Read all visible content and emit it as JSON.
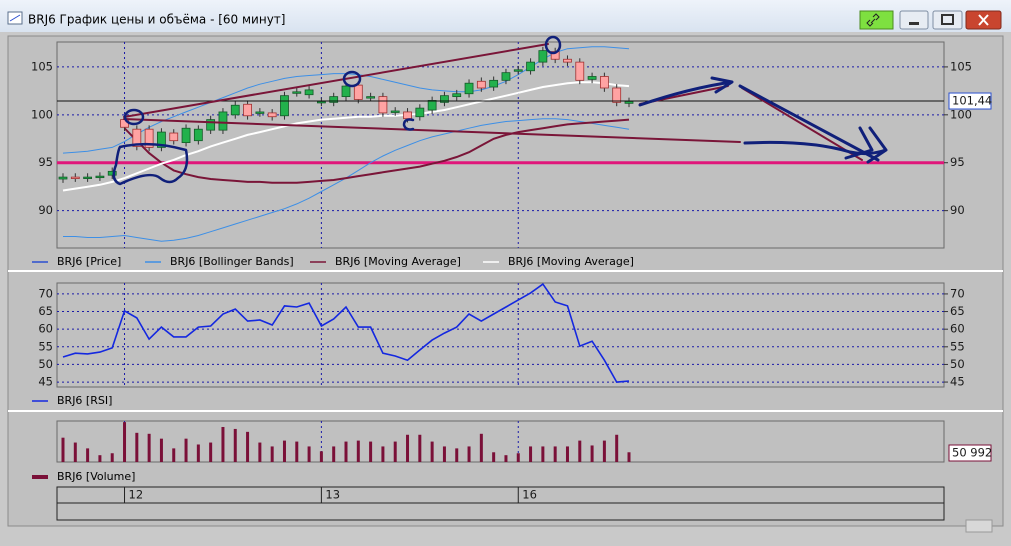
{
  "window": {
    "title": "BRJ6 График цены и объёма - [60 минут]"
  },
  "chart_data": [
    {
      "type": "candlestick",
      "ylim": [
        86.1,
        107.6
      ],
      "yticks": [
        90,
        95,
        100,
        105
      ],
      "grid": true,
      "level": 95,
      "level_color": "#e0167a",
      "last_price": {
        "value": 101.44,
        "label": "101,44"
      },
      "series": [
        {
          "name": "BRJ6 [Price]",
          "color": "#2a4fd0",
          "up_color": "#22b14c",
          "down_color": "#ffa3a3",
          "open": [
            93.3,
            93.5,
            93.4,
            93.5,
            93.7,
            99.5,
            98.5,
            98.5,
            96.6,
            98.1,
            97.1,
            97.3,
            98.4,
            98.4,
            100.0,
            101.1,
            100.2,
            100.2,
            99.9,
            102.3,
            102.1,
            101.3,
            101.3,
            101.9,
            103.1,
            101.8,
            101.9,
            100.3,
            100.3,
            99.8,
            100.5,
            101.3,
            101.9,
            102.2,
            103.5,
            102.9,
            103.6,
            104.6,
            104.6,
            105.5,
            106.6,
            105.8,
            105.5,
            103.7,
            104.0,
            102.8,
            101.2
          ],
          "high": [
            93.9,
            93.9,
            93.9,
            94.0,
            94.5,
            99.9,
            98.9,
            98.9,
            98.6,
            98.5,
            99.0,
            98.9,
            99.9,
            100.7,
            101.4,
            101.5,
            100.7,
            100.6,
            102.4,
            102.8,
            103.0,
            101.8,
            102.3,
            103.4,
            103.5,
            102.3,
            102.3,
            100.8,
            100.7,
            101.1,
            101.9,
            102.4,
            102.6,
            103.7,
            103.9,
            104.0,
            104.8,
            105.1,
            105.9,
            107.1,
            107.0,
            106.2,
            105.9,
            104.4,
            104.4,
            103.2,
            101.8
          ],
          "low": [
            92.9,
            93.0,
            93.0,
            93.1,
            93.3,
            98.3,
            96.3,
            96.2,
            96.2,
            96.9,
            96.7,
            96.9,
            98.0,
            98.0,
            99.6,
            99.5,
            99.8,
            99.4,
            99.5,
            101.9,
            101.7,
            100.9,
            100.9,
            101.5,
            101.2,
            101.4,
            99.8,
            99.9,
            99.2,
            99.4,
            100.1,
            100.9,
            101.5,
            101.8,
            102.4,
            102.5,
            103.2,
            104.2,
            104.2,
            105.1,
            105.4,
            105.1,
            103.2,
            103.3,
            102.4,
            100.9,
            100.8
          ],
          "close": [
            93.5,
            93.4,
            93.5,
            93.6,
            94.1,
            98.7,
            96.7,
            96.6,
            98.2,
            97.3,
            98.6,
            98.5,
            99.5,
            100.3,
            101.0,
            99.9,
            100.3,
            99.8,
            102.0,
            102.4,
            102.6,
            101.4,
            101.9,
            103.0,
            101.6,
            101.9,
            100.2,
            100.4,
            99.6,
            100.7,
            101.5,
            102.0,
            102.2,
            103.3,
            102.8,
            103.6,
            104.4,
            104.7,
            105.5,
            106.7,
            105.8,
            105.5,
            103.6,
            104.0,
            102.8,
            101.3,
            101.4
          ]
        },
        {
          "name": "BRJ6 [Bollinger Bands]",
          "color": "#3d8fe6",
          "upper": [
            96.0,
            96.1,
            96.2,
            96.4,
            96.6,
            97.2,
            98.0,
            98.7,
            99.3,
            99.8,
            100.3,
            100.8,
            101.3,
            101.8,
            102.3,
            102.8,
            103.2,
            103.5,
            103.8,
            104.0,
            104.1,
            104.2,
            104.3,
            104.3,
            104.2,
            104.0,
            103.7,
            103.4,
            103.1,
            102.8,
            102.6,
            102.5,
            102.4,
            102.4,
            102.6,
            103.0,
            103.5,
            104.2,
            105.0,
            105.8,
            106.5,
            106.9,
            107.0,
            107.1,
            107.1,
            107.0,
            106.9
          ],
          "lower": [
            87.3,
            87.3,
            87.2,
            87.2,
            87.3,
            87.4,
            87.2,
            87.0,
            86.8,
            86.9,
            87.1,
            87.4,
            87.8,
            88.2,
            88.6,
            89.0,
            89.4,
            89.8,
            90.2,
            90.7,
            91.3,
            92.0,
            92.7,
            93.4,
            94.2,
            95.0,
            95.7,
            96.3,
            96.8,
            97.3,
            97.7,
            98.0,
            98.3,
            98.6,
            98.9,
            99.1,
            99.3,
            99.4,
            99.5,
            99.6,
            99.6,
            99.5,
            99.3,
            99.1,
            98.9,
            98.7,
            98.5
          ]
        },
        {
          "name": "BRJ6 [Moving Average]",
          "color": "#7a1538",
          "values": [
            null,
            null,
            null,
            null,
            null,
            98.6,
            97.3,
            96.0,
            95.0,
            94.2,
            93.8,
            93.5,
            93.3,
            93.2,
            93.1,
            93.0,
            93.0,
            92.9,
            92.9,
            92.9,
            93.0,
            93.1,
            93.2,
            93.4,
            93.6,
            93.8,
            94.0,
            94.2,
            94.4,
            94.6,
            94.9,
            95.2,
            95.6,
            96.1,
            96.8,
            97.5,
            97.9,
            98.2,
            98.4,
            98.6,
            98.8,
            99.0,
            99.1,
            99.2,
            99.3,
            99.4,
            99.5
          ]
        },
        {
          "name": "BRJ6 [Moving Average]",
          "color": "#ffffff",
          "values": [
            92.1,
            92.3,
            92.5,
            92.7,
            93.0,
            93.4,
            93.9,
            94.4,
            94.9,
            95.3,
            95.8,
            96.2,
            96.7,
            97.1,
            97.5,
            97.9,
            98.2,
            98.5,
            98.8,
            99.1,
            99.3,
            99.5,
            99.6,
            99.7,
            99.8,
            99.8,
            99.9,
            99.9,
            100.0,
            100.1,
            100.3,
            100.5,
            100.8,
            101.1,
            101.4,
            101.7,
            102.0,
            102.3,
            102.6,
            102.9,
            103.1,
            103.3,
            103.4,
            103.4,
            103.3,
            103.1,
            103.0
          ]
        }
      ]
    },
    {
      "type": "line",
      "ylim": [
        43.6,
        73.1
      ],
      "yticks": [
        45,
        50,
        55,
        60,
        65,
        70
      ],
      "grid": true,
      "series": [
        {
          "name": "BRJ6 [RSI]",
          "color": "#1428e0",
          "values": [
            52.1,
            53.2,
            53.0,
            53.5,
            54.7,
            65.2,
            63.2,
            57.2,
            60.6,
            57.8,
            57.8,
            60.6,
            60.9,
            64.3,
            65.7,
            62.3,
            62.6,
            61.2,
            66.6,
            66.3,
            67.4,
            60.9,
            62.9,
            66.3,
            60.6,
            60.6,
            53.2,
            52.4,
            51.2,
            54.1,
            56.9,
            58.9,
            60.6,
            64.3,
            62.3,
            64.3,
            66.3,
            68.3,
            70.3,
            72.8,
            67.7,
            66.6,
            55.2,
            56.6,
            51.2,
            45.0,
            45.3
          ]
        }
      ]
    },
    {
      "type": "bar",
      "ylim": [
        0,
        215000
      ],
      "categories": [
        null,
        null,
        null,
        null,
        null,
        "12",
        null,
        null,
        null,
        null,
        null,
        null,
        null,
        null,
        null,
        null,
        null,
        null,
        null,
        null,
        null,
        "13",
        null,
        null,
        null,
        null,
        null,
        null,
        null,
        null,
        null,
        null,
        null,
        null,
        null,
        null,
        null,
        "16",
        null,
        null,
        null,
        null,
        null,
        null,
        null,
        null,
        null
      ],
      "series": [
        {
          "name": "BRJ6 [Volume]",
          "color": "#7a1038",
          "values": [
            127500,
            102000,
            71400,
            35700,
            45900,
            209100,
            153000,
            147900,
            122400,
            71400,
            122400,
            91800,
            102000,
            183600,
            173400,
            158100,
            102000,
            81600,
            112200,
            107100,
            81600,
            56100,
            81600,
            107100,
            112200,
            107100,
            81600,
            107100,
            142800,
            142800,
            107100,
            81600,
            71400,
            81600,
            147900,
            51000,
            35700,
            45900,
            81600,
            81600,
            81600,
            81600,
            112200,
            86700,
            112200,
            142800,
            50992
          ],
          "value_labels": [
            null,
            null,
            null,
            null,
            null,
            null,
            null,
            null,
            null,
            null,
            null,
            null,
            null,
            null,
            null,
            null,
            null,
            null,
            null,
            null,
            null,
            null,
            null,
            null,
            null,
            null,
            null,
            null,
            null,
            null,
            null,
            null,
            null,
            null,
            null,
            null,
            null,
            null,
            null,
            null,
            null,
            null,
            null,
            null,
            null,
            null,
            "50 992"
          ]
        }
      ]
    }
  ]
}
